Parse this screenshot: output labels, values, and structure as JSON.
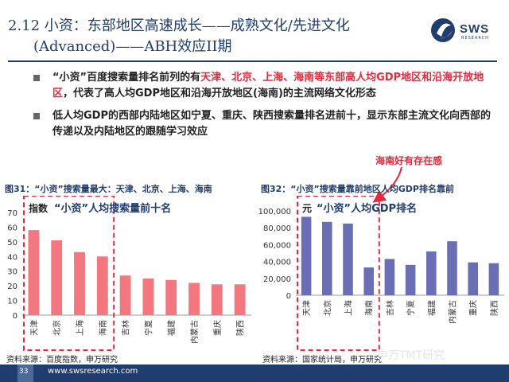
{
  "header": {
    "title_line1": "2.12 小资：东部地区高速成长——成熟文化/先进文化",
    "title_line2": "(Advanced)——ABH效应II期",
    "logo_text": "SWS",
    "logo_sub": "RESEARCH"
  },
  "bullets": [
    {
      "parts": [
        {
          "text": "“小资”百度搜索量排名前列的有",
          "red": false
        },
        {
          "text": "天津、北京、上海、海南等东部高人均GDP地区和沿海开放地区",
          "red": true
        },
        {
          "text": "，代表了高人均GDP地区和沿海开放地区(海南)的主流网络文化形态",
          "red": false
        }
      ]
    },
    {
      "parts": [
        {
          "text": "低人均GDP的西部内陆地区如宁夏、重庆、陕西搜索量排名进前十，显示东部主流文化向西部的传递以及内陆地区的跟随学习效应",
          "red": false
        }
      ]
    }
  ],
  "callout": "海南好有存在感",
  "colors": {
    "navy": "#1f3d6e",
    "red_bar": "#f3777f",
    "purple_bar": "#6a6fb5",
    "accent_red": "#e8283c"
  },
  "figure31": {
    "title": "图31：“小资”搜索量最大：天津、北京、上海、海南",
    "source": "资料来源：百度指数，申万研究",
    "label_unit": "指数",
    "label_main": "“小资”人均搜索量前十名"
  },
  "figure32": {
    "title": "图32：“小资”搜索量靠前地区人均GDP排名靠前",
    "source": "资料来源：国家统计局，申万研究",
    "label_unit": "元",
    "label_main": "“小资”人均GDP排名"
  },
  "chart_data": [
    {
      "type": "bar",
      "categories": [
        "天津",
        "北京",
        "上海",
        "海南",
        "吉林",
        "宁夏",
        "福建",
        "内蒙古",
        "重庆",
        "陕西"
      ],
      "values": [
        58,
        51,
        43,
        40,
        27,
        25,
        24,
        22,
        21,
        21
      ],
      "ylim": [
        0,
        70
      ],
      "yticks": [
        "0",
        "10",
        "20",
        "30",
        "40",
        "50",
        "60",
        "70"
      ],
      "highlight_count": 4,
      "title": "图31：“小资”搜索量最大：天津、北京、上海、海南",
      "xlabel": "",
      "ylabel": "指数"
    },
    {
      "type": "bar",
      "categories": [
        "天津",
        "北京",
        "上海",
        "海南",
        "吉林",
        "宁夏",
        "福建",
        "内蒙古",
        "重庆",
        "陕西"
      ],
      "values": [
        93000,
        87000,
        85000,
        33000,
        43000,
        36000,
        52000,
        64000,
        39000,
        38000
      ],
      "ylim": [
        0,
        100000
      ],
      "yticks": [
        "0",
        "20,000",
        "40,000",
        "60,000",
        "80,000",
        "100,000"
      ],
      "highlight_count": 4,
      "title": "图32：“小资”搜索量靠前地区人均GDP排名靠前",
      "xlabel": "",
      "ylabel": "元"
    }
  ],
  "footer": {
    "page": "33",
    "url": "www.swsresearch.com",
    "watermark": "申万TMT研究"
  }
}
